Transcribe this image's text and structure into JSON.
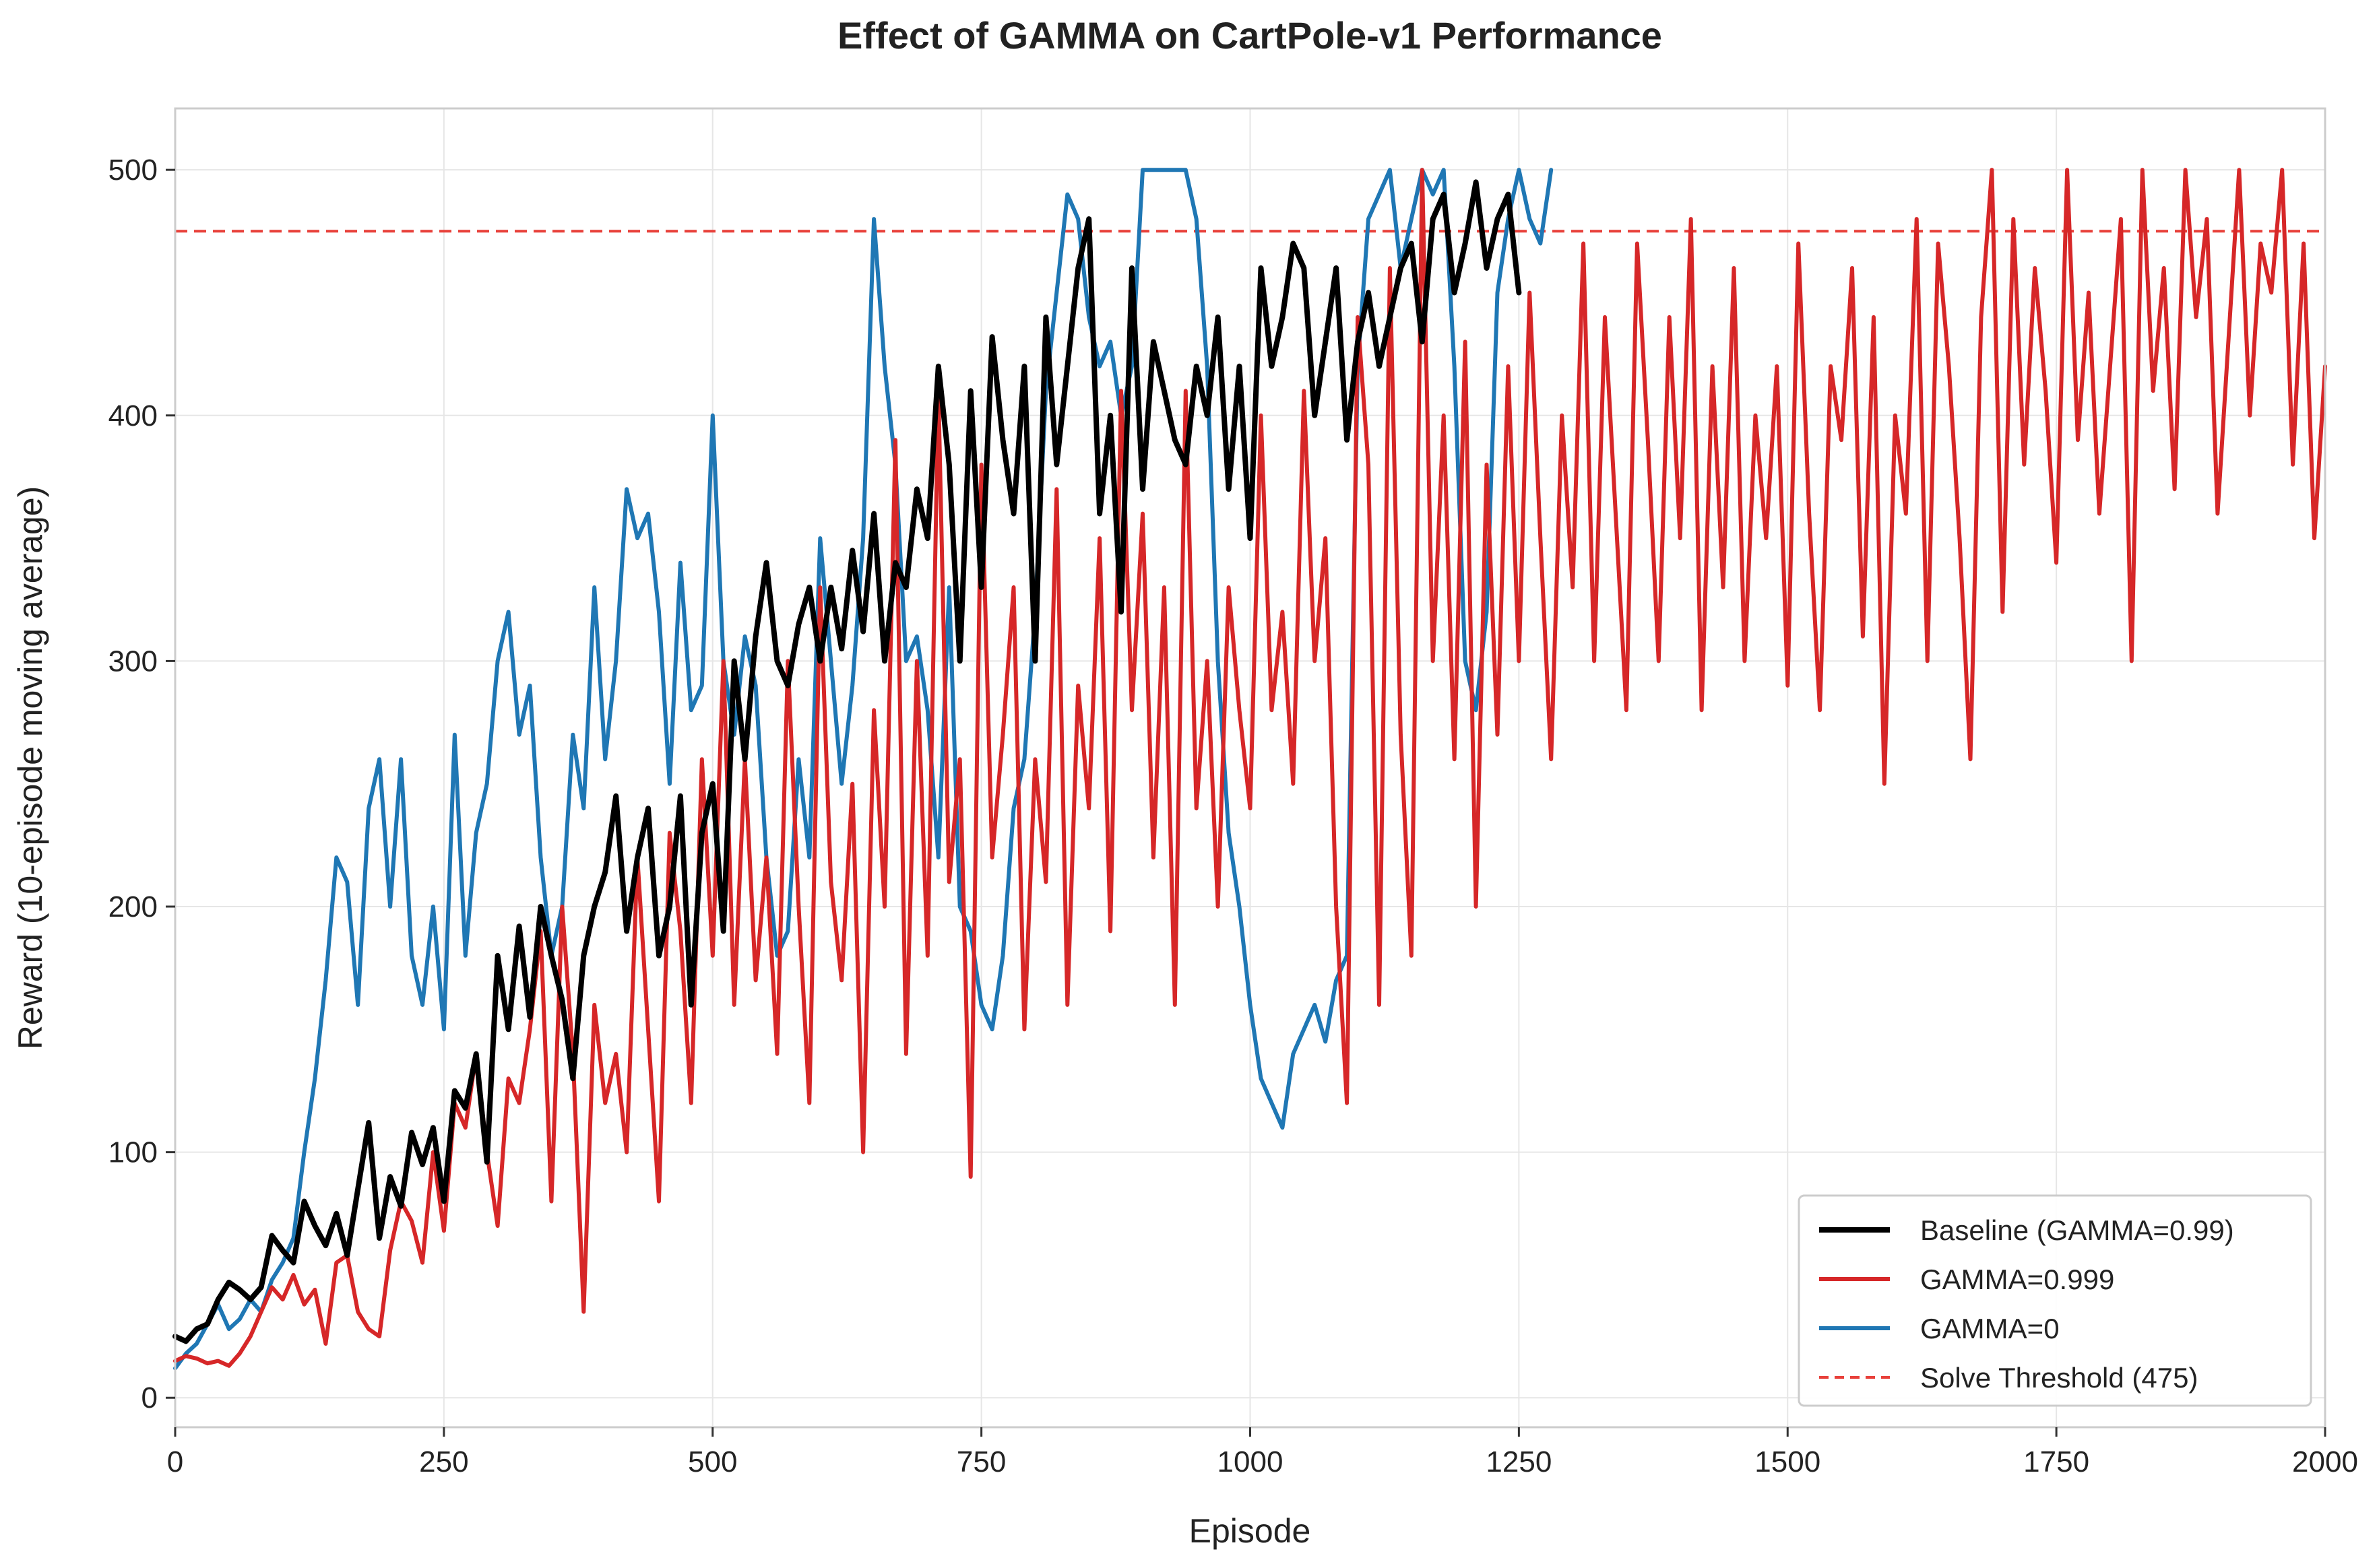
{
  "chart_data": {
    "type": "line",
    "title": "Effect of GAMMA on CartPole-v1 Performance",
    "xlabel": "Episode",
    "ylabel": "Reward (10-episode moving average)",
    "xlim": [
      0,
      2000
    ],
    "ylim": [
      -12,
      525
    ],
    "xticks": [
      0,
      250,
      500,
      750,
      1000,
      1250,
      1500,
      1750,
      2000
    ],
    "yticks": [
      0,
      100,
      200,
      300,
      400,
      500
    ],
    "grid": true,
    "legend_position": "lower-right",
    "series": [
      {
        "name": "Baseline (GAMMA=0.99)",
        "color": "#000000",
        "x": [
          0,
          10,
          20,
          30,
          40,
          50,
          60,
          70,
          80,
          90,
          100,
          110,
          120,
          130,
          140,
          150,
          160,
          170,
          180,
          190,
          200,
          210,
          220,
          230,
          240,
          250,
          260,
          270,
          280,
          290,
          300,
          310,
          320,
          330,
          340,
          350,
          360,
          370,
          380,
          390,
          400,
          410,
          420,
          430,
          440,
          450,
          460,
          470,
          480,
          490,
          500,
          510,
          520,
          530,
          540,
          550,
          560,
          570,
          580,
          590,
          600,
          610,
          620,
          630,
          640,
          650,
          660,
          670,
          680,
          690,
          700,
          710,
          720,
          730,
          740,
          750,
          760,
          770,
          780,
          790,
          800,
          810,
          820,
          830,
          840,
          850,
          860,
          870,
          880,
          890,
          900,
          910,
          920,
          930,
          940,
          950,
          960,
          970,
          980,
          990,
          1000,
          1010,
          1020,
          1030,
          1040,
          1050,
          1060,
          1070,
          1080,
          1090,
          1100,
          1110,
          1120,
          1130,
          1140,
          1150,
          1160,
          1170,
          1180,
          1190,
          1200,
          1210,
          1220,
          1230,
          1240,
          1250
        ],
        "values": [
          25,
          23,
          28,
          30,
          40,
          47,
          44,
          40,
          45,
          66,
          60,
          55,
          80,
          70,
          62,
          75,
          58,
          85,
          112,
          65,
          90,
          78,
          108,
          95,
          110,
          80,
          125,
          118,
          140,
          96,
          180,
          150,
          192,
          155,
          200,
          180,
          162,
          130,
          180,
          200,
          214,
          245,
          190,
          220,
          240,
          180,
          200,
          245,
          160,
          230,
          250,
          190,
          300,
          260,
          310,
          340,
          300,
          290,
          315,
          330,
          300,
          330,
          305,
          345,
          312,
          360,
          300,
          340,
          330,
          370,
          350,
          420,
          380,
          300,
          410,
          330,
          432,
          390,
          360,
          420,
          300,
          440,
          380,
          420,
          460,
          480,
          360,
          400,
          320,
          460,
          370,
          430,
          410,
          390,
          380,
          420,
          400,
          440,
          370,
          420,
          350,
          460,
          420,
          440,
          470,
          460,
          400,
          430,
          460,
          390,
          430,
          450,
          420,
          440,
          460,
          470,
          430,
          480,
          490,
          450,
          470,
          495,
          460,
          480,
          490,
          450
        ],
        "linewidth": 8
      },
      {
        "name": "GAMMA=0.999",
        "color": "#d62728",
        "x": [
          0,
          10,
          20,
          30,
          40,
          50,
          60,
          70,
          80,
          90,
          100,
          110,
          120,
          130,
          140,
          150,
          160,
          170,
          180,
          190,
          200,
          210,
          220,
          230,
          240,
          250,
          260,
          270,
          280,
          290,
          300,
          310,
          320,
          330,
          340,
          350,
          360,
          370,
          380,
          390,
          400,
          410,
          420,
          430,
          440,
          450,
          460,
          470,
          480,
          490,
          500,
          510,
          520,
          530,
          540,
          550,
          560,
          570,
          580,
          590,
          600,
          610,
          620,
          630,
          640,
          650,
          660,
          670,
          680,
          690,
          700,
          710,
          720,
          730,
          740,
          750,
          760,
          770,
          780,
          790,
          800,
          810,
          820,
          830,
          840,
          850,
          860,
          870,
          880,
          890,
          900,
          910,
          920,
          930,
          940,
          950,
          960,
          970,
          980,
          990,
          1000,
          1010,
          1020,
          1030,
          1040,
          1050,
          1060,
          1070,
          1080,
          1090,
          1100,
          1110,
          1120,
          1130,
          1140,
          1150,
          1160,
          1170,
          1180,
          1190,
          1200,
          1210,
          1220,
          1230,
          1240,
          1250,
          1260,
          1270,
          1280,
          1290,
          1300,
          1310,
          1320,
          1330,
          1340,
          1350,
          1360,
          1370,
          1380,
          1390,
          1400,
          1410,
          1420,
          1430,
          1440,
          1450,
          1460,
          1470,
          1480,
          1490,
          1500,
          1510,
          1520,
          1530,
          1540,
          1550,
          1560,
          1570,
          1580,
          1590,
          1600,
          1610,
          1620,
          1630,
          1640,
          1650,
          1660,
          1670,
          1680,
          1690,
          1700,
          1710,
          1720,
          1730,
          1740,
          1750,
          1760,
          1770,
          1780,
          1790,
          1800,
          1810,
          1820,
          1830,
          1840,
          1850,
          1860,
          1870,
          1880,
          1890,
          1900,
          1910,
          1920,
          1930,
          1940,
          1950,
          1960,
          1970,
          1980,
          1990,
          2000
        ],
        "values": [
          15,
          17,
          16,
          14,
          15,
          13,
          18,
          25,
          35,
          45,
          40,
          50,
          38,
          44,
          22,
          55,
          58,
          35,
          28,
          25,
          60,
          80,
          72,
          55,
          100,
          68,
          120,
          110,
          140,
          100,
          70,
          130,
          120,
          150,
          190,
          80,
          200,
          140,
          35,
          160,
          120,
          140,
          100,
          220,
          150,
          80,
          230,
          190,
          120,
          260,
          180,
          300,
          160,
          260,
          170,
          220,
          140,
          300,
          200,
          120,
          330,
          210,
          170,
          250,
          100,
          280,
          200,
          390,
          140,
          300,
          180,
          410,
          210,
          260,
          90,
          380,
          220,
          270,
          330,
          150,
          260,
          210,
          370,
          160,
          290,
          240,
          350,
          190,
          410,
          280,
          360,
          220,
          330,
          160,
          410,
          240,
          300,
          200,
          330,
          280,
          240,
          400,
          280,
          320,
          250,
          410,
          300,
          350,
          200,
          120,
          440,
          380,
          160,
          460,
          270,
          180,
          500,
          300,
          400,
          260,
          430,
          200,
          380,
          270,
          420,
          300,
          450,
          350,
          260,
          400,
          330,
          470,
          300,
          440,
          360,
          280,
          470,
          390,
          300,
          440,
          350,
          480,
          280,
          420,
          330,
          460,
          300,
          400,
          350,
          420,
          290,
          470,
          360,
          280,
          420,
          390,
          460,
          310,
          440,
          250,
          400,
          360,
          480,
          300,
          470,
          420,
          350,
          260,
          440,
          500,
          320,
          480,
          380,
          460,
          410,
          340,
          500,
          390,
          450,
          360,
          420,
          480,
          300,
          500,
          410,
          460,
          370,
          500,
          440,
          480,
          360,
          430,
          500,
          400,
          470,
          450,
          500,
          380,
          470,
          350,
          420
        ],
        "linewidth": 6
      },
      {
        "name": "GAMMA=0",
        "color": "#1f77b4",
        "x": [
          0,
          10,
          20,
          30,
          40,
          50,
          60,
          70,
          80,
          90,
          100,
          110,
          120,
          130,
          140,
          150,
          160,
          170,
          180,
          190,
          200,
          210,
          220,
          230,
          240,
          250,
          260,
          270,
          280,
          290,
          300,
          310,
          320,
          330,
          340,
          350,
          360,
          370,
          380,
          390,
          400,
          410,
          420,
          430,
          440,
          450,
          460,
          470,
          480,
          490,
          500,
          510,
          520,
          530,
          540,
          550,
          560,
          570,
          580,
          590,
          600,
          610,
          620,
          630,
          640,
          650,
          660,
          670,
          680,
          690,
          700,
          710,
          720,
          730,
          740,
          750,
          760,
          770,
          780,
          790,
          800,
          810,
          820,
          830,
          840,
          850,
          860,
          870,
          880,
          890,
          900,
          910,
          920,
          930,
          940,
          950,
          960,
          970,
          980,
          990,
          1000,
          1010,
          1020,
          1030,
          1040,
          1050,
          1060,
          1070,
          1080,
          1090,
          1100,
          1110,
          1120,
          1130,
          1140,
          1150,
          1160,
          1170,
          1180,
          1190,
          1200,
          1210,
          1220,
          1230,
          1240,
          1250,
          1260,
          1270,
          1280
        ],
        "values": [
          12,
          18,
          22,
          30,
          38,
          28,
          32,
          40,
          35,
          48,
          55,
          65,
          100,
          130,
          170,
          220,
          210,
          160,
          240,
          260,
          200,
          260,
          180,
          160,
          200,
          150,
          270,
          180,
          230,
          250,
          300,
          320,
          270,
          290,
          220,
          180,
          200,
          270,
          240,
          330,
          260,
          300,
          370,
          350,
          360,
          320,
          250,
          340,
          280,
          290,
          400,
          300,
          270,
          310,
          290,
          220,
          180,
          190,
          260,
          220,
          350,
          300,
          250,
          290,
          350,
          480,
          420,
          380,
          300,
          310,
          280,
          220,
          330,
          200,
          190,
          160,
          150,
          180,
          240,
          260,
          320,
          410,
          450,
          490,
          480,
          440,
          420,
          430,
          400,
          420,
          500,
          500,
          500,
          500,
          500,
          480,
          420,
          300,
          230,
          200,
          160,
          130,
          120,
          110,
          140,
          150,
          160,
          145,
          170,
          180,
          420,
          480,
          490,
          500,
          460,
          480,
          500,
          490,
          500,
          420,
          300,
          280,
          320,
          450,
          480,
          500,
          480,
          470,
          500
        ],
        "linewidth": 6
      }
    ],
    "threshold": {
      "name": "Solve Threshold (475)",
      "value": 475,
      "color": "#e8403a",
      "style": "dashed"
    }
  }
}
